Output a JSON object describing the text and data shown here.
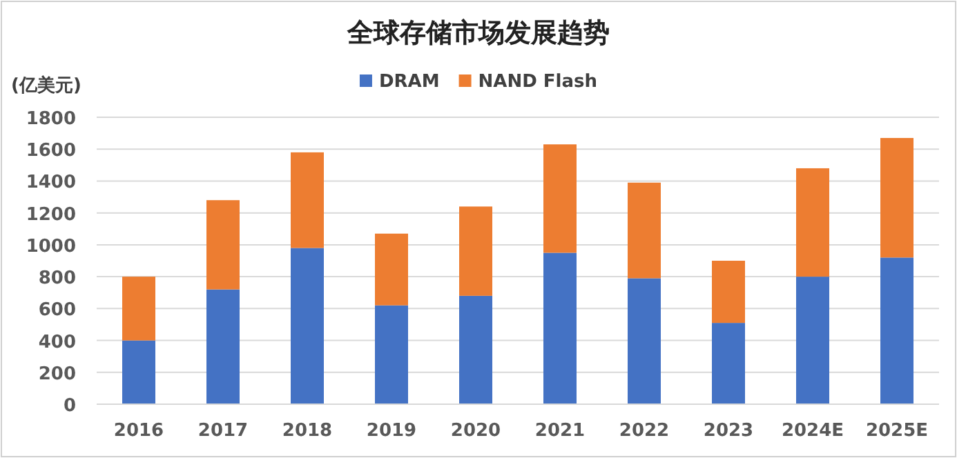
{
  "chart_data": {
    "type": "bar",
    "title": "全球存储市场发展趋势",
    "ylabel": "(亿美元)",
    "categories": [
      "2016",
      "2017",
      "2018",
      "2019",
      "2020",
      "2021",
      "2022",
      "2023",
      "2024E",
      "2025E"
    ],
    "series": [
      {
        "name": "DRAM",
        "color": "#4472c4",
        "values": [
          400,
          720,
          980,
          620,
          680,
          950,
          790,
          510,
          800,
          920
        ]
      },
      {
        "name": "NAND Flash",
        "color": "#ed7d31",
        "values": [
          400,
          560,
          600,
          450,
          560,
          680,
          600,
          390,
          680,
          750
        ]
      }
    ],
    "stacked": true,
    "ylim": [
      0,
      1800
    ],
    "yticks": [
      0,
      200,
      400,
      600,
      800,
      1000,
      1200,
      1400,
      1600,
      1800
    ],
    "grid": "y",
    "legend": "top"
  }
}
